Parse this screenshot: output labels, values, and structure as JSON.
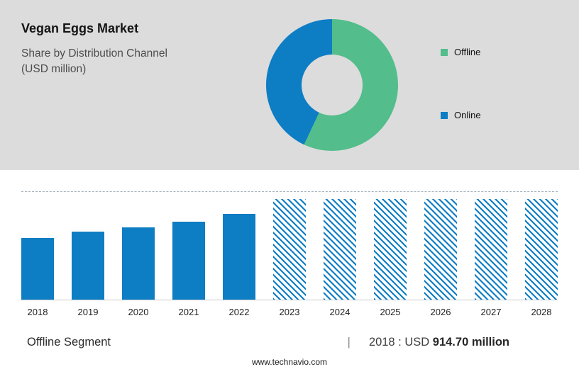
{
  "header": {
    "title": "Vegan Eggs Market",
    "subtitle_line1": "Share by Distribution Channel",
    "subtitle_line2": "(USD million)"
  },
  "chart_data": [
    {
      "type": "pie",
      "subtype": "donut",
      "title": "Share by Distribution Channel (USD million)",
      "labels": [
        "Offline",
        "Online"
      ],
      "values_pct": [
        57,
        43
      ],
      "colors": [
        "#53BD8B",
        "#0D7DC4"
      ],
      "legend_position": "right"
    },
    {
      "type": "bar",
      "title": "Vegan Eggs Market (USD million)",
      "categories": [
        "2018",
        "2019",
        "2020",
        "2021",
        "2022",
        "2023",
        "2024",
        "2025",
        "2026",
        "2027",
        "2028"
      ],
      "values": [
        914.7,
        1010,
        1070,
        1155,
        1270,
        1490,
        1490,
        1490,
        1490,
        1490,
        1490
      ],
      "bar_styles": [
        "solid",
        "solid",
        "solid",
        "solid",
        "solid",
        "hatched",
        "hatched",
        "hatched",
        "hatched",
        "hatched",
        "hatched"
      ],
      "ylim": [
        0,
        1600
      ],
      "bar_color": "#0D7DC4",
      "grid": "dashed-top-reference-line"
    }
  ],
  "footer": {
    "segment_label": "Offline Segment",
    "separator": "|",
    "stat_prefix": "2018 : USD",
    "stat_value": "914.70 million",
    "website": "www.technavio.com"
  },
  "colors": {
    "top_background": "#DCDCDC",
    "offline_green": "#53BD8B",
    "online_blue": "#0D7DC4"
  }
}
